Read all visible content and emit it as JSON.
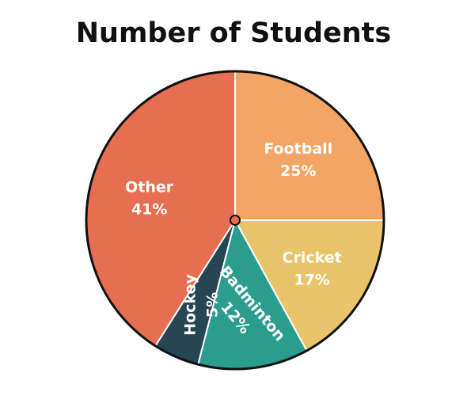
{
  "chart_data": {
    "type": "pie",
    "title": "Number of Students",
    "start_angle_deg": 0,
    "direction": "clockwise",
    "slices": [
      {
        "label": "Football",
        "value": 25,
        "value_label": "25%",
        "color": "#f2a564",
        "label_rotation": 0
      },
      {
        "label": "Cricket",
        "value": 17,
        "value_label": "17%",
        "color": "#e9c46a",
        "label_rotation": 0
      },
      {
        "label": "Badminton",
        "value": 12,
        "value_label": "12%",
        "color": "#2a9d8f",
        "label_rotation": 50
      },
      {
        "label": "Hockey",
        "value": 5,
        "value_label": "5%",
        "color": "#264653",
        "label_rotation": -90
      },
      {
        "label": "Other",
        "value": 41,
        "value_label": "41%",
        "color": "#e76f51",
        "label_rotation": 0
      }
    ],
    "outline_color": "#111111",
    "center_dot_color": "#e76f51"
  }
}
